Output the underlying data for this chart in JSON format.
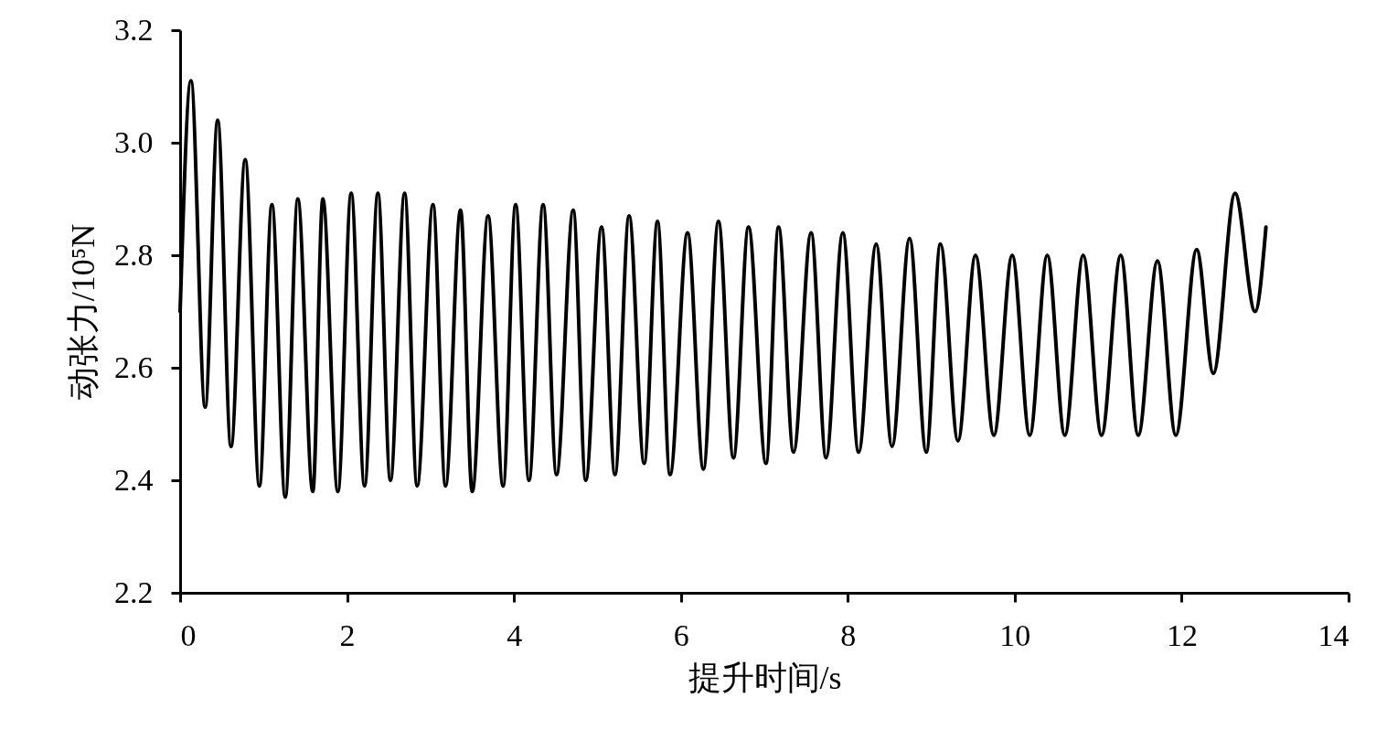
{
  "chart_data": {
    "type": "line",
    "xlabel": "提升时间/s",
    "ylabel": "动张力/10⁵N",
    "xlim": [
      0,
      14
    ],
    "xticks": [
      0,
      2,
      4,
      6,
      8,
      10,
      12,
      14
    ],
    "ylim": [
      2.2,
      3.2
    ],
    "yticks": [
      2.2,
      2.4,
      2.6,
      2.8,
      {
        "value": 3,
        "label": "3.0"
      },
      3.2
    ],
    "grid": false,
    "marker": "none",
    "line_style": "solid",
    "series": [
      {
        "color": "#000000",
        "x": [
          0,
          0.13,
          0.3,
          0.45,
          0.61,
          0.78,
          0.95,
          1.1,
          1.26,
          1.41,
          1.59,
          1.71,
          1.89,
          2.05,
          2.21,
          2.37,
          2.52,
          2.69,
          2.84,
          3.03,
          3.18,
          3.36,
          3.5,
          3.69,
          3.87,
          4.02,
          4.18,
          4.35,
          4.51,
          4.71,
          4.86,
          5.05,
          5.21,
          5.38,
          5.56,
          5.72,
          5.87,
          6.08,
          6.27,
          6.45,
          6.63,
          6.81,
          7.02,
          7.17,
          7.35,
          7.56,
          7.74,
          7.94,
          8.13,
          8.34,
          8.53,
          8.74,
          8.94,
          9.11,
          9.32,
          9.53,
          9.75,
          9.97,
          10.18,
          10.39,
          10.6,
          10.82,
          11.04,
          11.27,
          11.48,
          11.71,
          11.93,
          12.18,
          12.38,
          12.64,
          12.88,
          13.01
        ],
        "values": [
          2.7,
          3.11,
          2.53,
          3.04,
          2.46,
          2.97,
          2.39,
          2.89,
          2.37,
          2.9,
          2.38,
          2.9,
          2.38,
          2.91,
          2.39,
          2.91,
          2.4,
          2.91,
          2.39,
          2.89,
          2.39,
          2.88,
          2.38,
          2.87,
          2.39,
          2.89,
          2.4,
          2.89,
          2.41,
          2.88,
          2.4,
          2.85,
          2.41,
          2.87,
          2.43,
          2.86,
          2.41,
          2.84,
          2.42,
          2.86,
          2.44,
          2.85,
          2.43,
          2.85,
          2.45,
          2.84,
          2.44,
          2.84,
          2.45,
          2.82,
          2.46,
          2.83,
          2.45,
          2.82,
          2.47,
          2.8,
          2.48,
          2.8,
          2.48,
          2.8,
          2.48,
          2.8,
          2.48,
          2.8,
          2.48,
          2.79,
          2.48,
          2.81,
          2.59,
          2.91,
          2.7,
          2.85
        ]
      }
    ]
  }
}
